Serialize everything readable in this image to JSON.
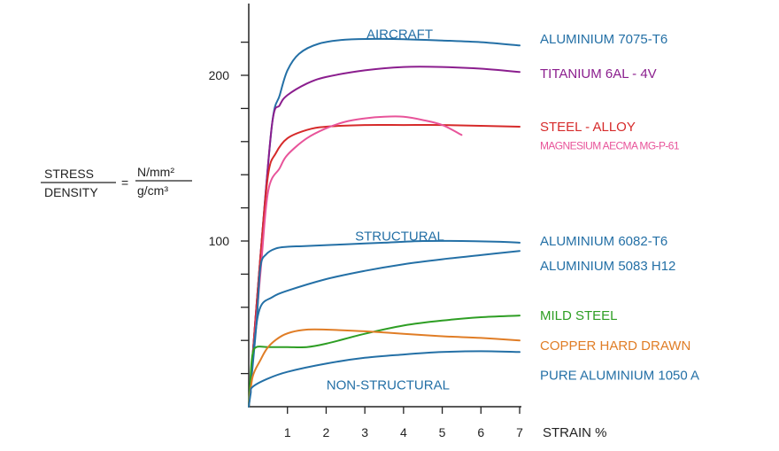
{
  "chart_data": {
    "type": "line",
    "xlabel": "STRAIN %",
    "ylabel": {
      "numerator": "STRESS",
      "denominator": "DENSITY",
      "equals": "=",
      "unit_numerator": "N/mm²",
      "unit_denominator": "g/cm³"
    },
    "xlim": [
      0,
      7
    ],
    "ylim": [
      0,
      240
    ],
    "x_ticks": [
      1,
      2,
      3,
      4,
      5,
      6,
      7
    ],
    "y_ticks": [
      20,
      40,
      60,
      80,
      100,
      120,
      140,
      160,
      180,
      200,
      220
    ],
    "y_tick_labels": [
      {
        "value": 100,
        "label": "100"
      },
      {
        "value": 200,
        "label": "200"
      }
    ],
    "grid": false,
    "legend": "right",
    "group_labels": [
      {
        "text": "AIRCRAFT",
        "x": 3.9,
        "y": 225,
        "color": "#2470a6"
      },
      {
        "text": "STRUCTURAL",
        "x": 3.9,
        "y": 103,
        "color": "#2470a6"
      },
      {
        "text": "NON-STRUCTURAL",
        "x": 3.6,
        "y": 13,
        "color": "#2470a6"
      }
    ],
    "series": [
      {
        "name": "ALUMINIUM 7075-T6",
        "color": "#2470a6",
        "label_y": 222,
        "points": [
          [
            0,
            0
          ],
          [
            0.3,
            90
          ],
          [
            0.6,
            170
          ],
          [
            0.8,
            188
          ],
          [
            1.0,
            203
          ],
          [
            1.3,
            213
          ],
          [
            1.8,
            219
          ],
          [
            2.5,
            221.5
          ],
          [
            3.5,
            222
          ],
          [
            5.0,
            221
          ],
          [
            6.0,
            220
          ],
          [
            7.0,
            218
          ]
        ]
      },
      {
        "name": "TITANIUM 6AL - 4V",
        "color": "#8b1e8e",
        "label_y": 201,
        "points": [
          [
            0,
            0
          ],
          [
            0.3,
            90
          ],
          [
            0.6,
            170
          ],
          [
            0.8,
            182
          ],
          [
            1.0,
            188
          ],
          [
            1.5,
            195
          ],
          [
            2.0,
            199
          ],
          [
            3.0,
            203
          ],
          [
            4.0,
            205
          ],
          [
            5.0,
            205
          ],
          [
            6.0,
            204
          ],
          [
            7.0,
            202
          ]
        ]
      },
      {
        "name": "STEEL - ALLOY",
        "color": "#d62a2a",
        "label_y": 169,
        "points": [
          [
            0,
            0
          ],
          [
            0.3,
            90
          ],
          [
            0.5,
            140
          ],
          [
            0.7,
            153
          ],
          [
            1.0,
            162
          ],
          [
            1.5,
            167
          ],
          [
            2.0,
            169
          ],
          [
            3.0,
            170
          ],
          [
            4.0,
            170
          ],
          [
            5.0,
            170
          ],
          [
            6.0,
            169.5
          ],
          [
            7.0,
            169
          ]
        ]
      },
      {
        "name": "MAGNESIUM AECMA MG-P-61",
        "color": "#e8549a",
        "label_y": 158,
        "small": true,
        "points": [
          [
            0,
            0
          ],
          [
            0.3,
            80
          ],
          [
            0.5,
            130
          ],
          [
            0.8,
            144
          ],
          [
            1.0,
            152
          ],
          [
            1.5,
            162
          ],
          [
            2.0,
            168
          ],
          [
            2.5,
            172
          ],
          [
            3.0,
            174
          ],
          [
            3.5,
            175
          ],
          [
            4.0,
            175
          ],
          [
            4.5,
            173
          ],
          [
            5.0,
            170
          ],
          [
            5.5,
            164
          ]
        ]
      },
      {
        "name": "ALUMINIUM 6082-T6",
        "color": "#2470a6",
        "label_y": 100,
        "points": [
          [
            0,
            0
          ],
          [
            0.2,
            50
          ],
          [
            0.3,
            84
          ],
          [
            0.45,
            92
          ],
          [
            0.7,
            95.5
          ],
          [
            1.0,
            96.5
          ],
          [
            1.5,
            97
          ],
          [
            2.5,
            98
          ],
          [
            3.5,
            99
          ],
          [
            4.5,
            100
          ],
          [
            5.5,
            100
          ],
          [
            6.5,
            99.5
          ],
          [
            7.0,
            99
          ]
        ]
      },
      {
        "name": "ALUMINIUM 5083 H12",
        "color": "#2470a6",
        "label_y": 85,
        "points": [
          [
            0,
            0
          ],
          [
            0.15,
            40
          ],
          [
            0.3,
            60
          ],
          [
            0.6,
            66
          ],
          [
            1.0,
            70
          ],
          [
            2.0,
            77
          ],
          [
            3.0,
            82
          ],
          [
            4.0,
            86
          ],
          [
            5.0,
            89
          ],
          [
            6.0,
            91.5
          ],
          [
            7.0,
            94
          ]
        ]
      },
      {
        "name": "MILD STEEL",
        "color": "#2e9e24",
        "label_y": 55,
        "points": [
          [
            0,
            0
          ],
          [
            0.05,
            20
          ],
          [
            0.1,
            32
          ],
          [
            0.2,
            36
          ],
          [
            0.5,
            36
          ],
          [
            1.0,
            36
          ],
          [
            1.5,
            36
          ],
          [
            2.0,
            38
          ],
          [
            3.0,
            44
          ],
          [
            4.0,
            49
          ],
          [
            5.0,
            52
          ],
          [
            6.0,
            54
          ],
          [
            7.0,
            55
          ]
        ]
      },
      {
        "name": "COPPER HARD DRAWN",
        "color": "#e07d26",
        "label_y": 37,
        "points": [
          [
            0,
            0
          ],
          [
            0.1,
            18
          ],
          [
            0.3,
            28
          ],
          [
            0.5,
            36
          ],
          [
            0.8,
            42
          ],
          [
            1.1,
            45
          ],
          [
            1.5,
            46.5
          ],
          [
            2.0,
            46.5
          ],
          [
            3.0,
            45.5
          ],
          [
            4.0,
            44
          ],
          [
            5.0,
            42.5
          ],
          [
            6.0,
            41.5
          ],
          [
            7.0,
            40
          ]
        ]
      },
      {
        "name": "PURE ALUMINIUM 1050 A",
        "color": "#2470a6",
        "label_y": 19,
        "points": [
          [
            0,
            0
          ],
          [
            0.05,
            8
          ],
          [
            0.1,
            12
          ],
          [
            0.5,
            17
          ],
          [
            1.0,
            21
          ],
          [
            2.0,
            26
          ],
          [
            3.0,
            29.5
          ],
          [
            4.0,
            31.5
          ],
          [
            5.0,
            33
          ],
          [
            6.0,
            33.5
          ],
          [
            7.0,
            33
          ]
        ]
      }
    ]
  }
}
